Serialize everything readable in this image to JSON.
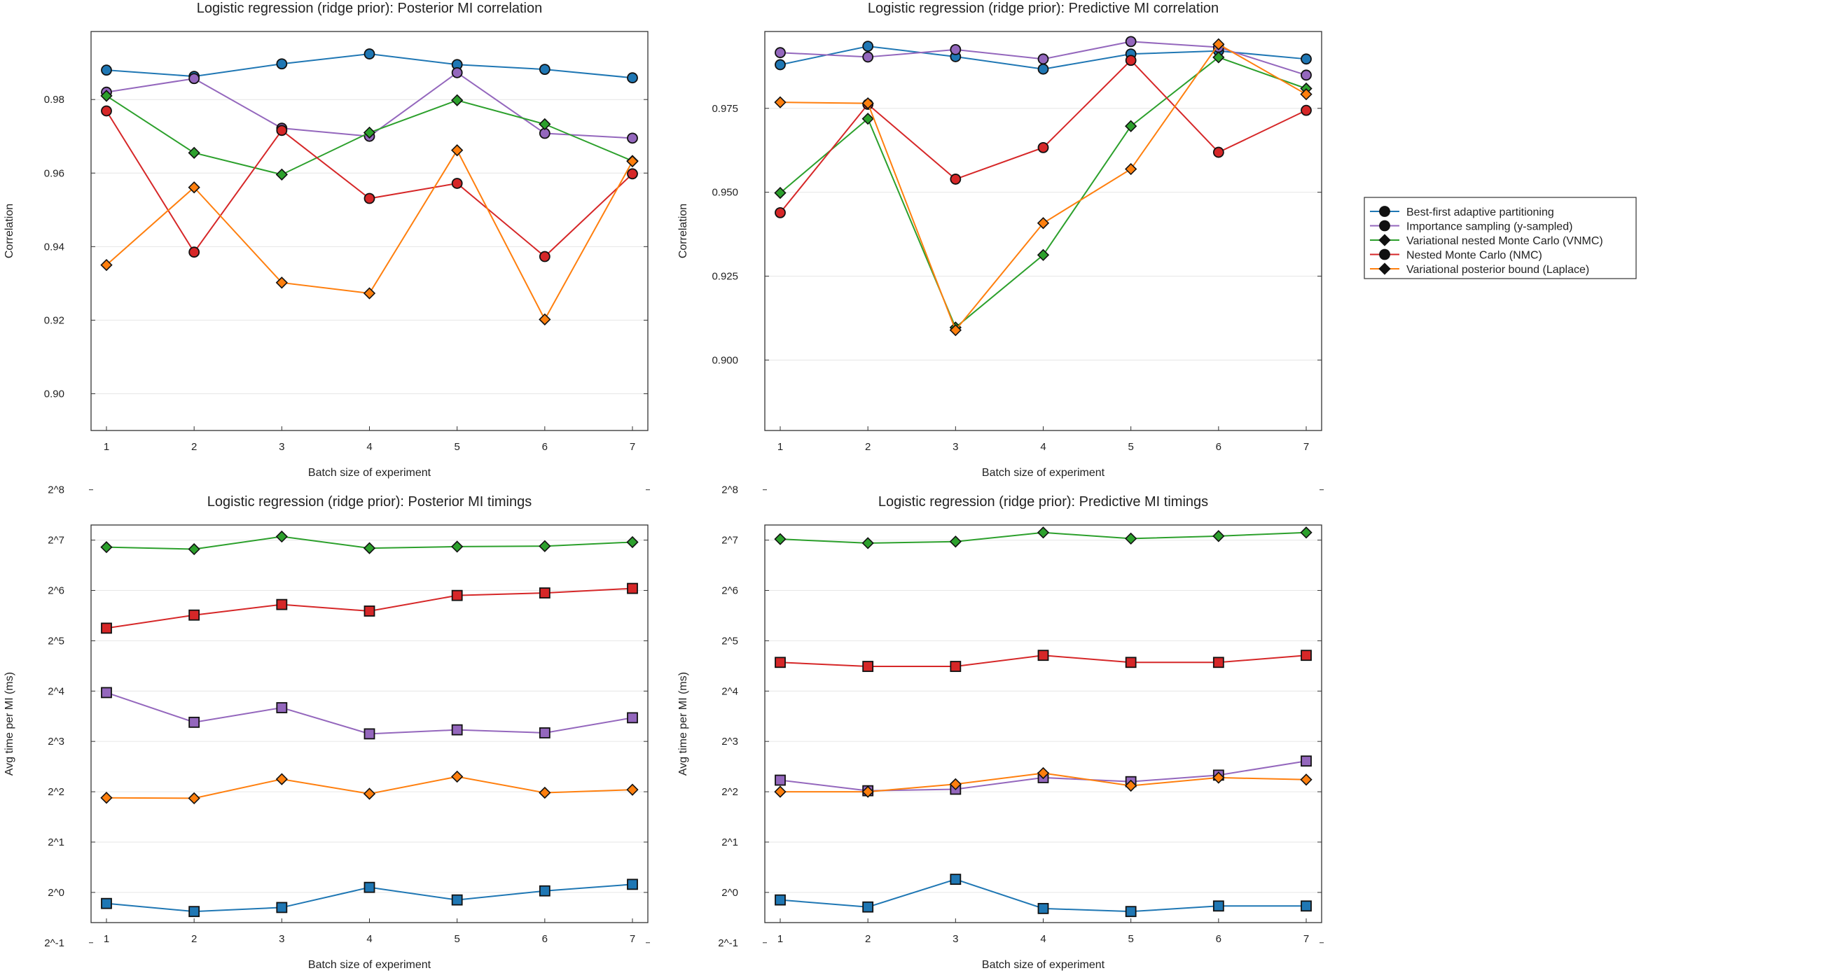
{
  "chart_data": [
    {
      "type": "line",
      "title": "Logistic regression (ridge prior): Posterior MI correlation",
      "xlabel": "Batch size of experiment",
      "ylabel": "Correlation",
      "x": [
        1,
        2,
        3,
        4,
        5,
        6,
        7
      ],
      "xticks": [
        "1",
        "2",
        "3",
        "4",
        "5",
        "6",
        "7"
      ],
      "ylim": [
        0.89,
        0.9985
      ],
      "yticks": [
        0.9,
        0.92,
        0.94,
        0.96,
        0.98
      ],
      "ytick_labels": [
        "0.90",
        "0.92",
        "0.94",
        "0.96",
        "0.98"
      ],
      "scale": "linear",
      "series": [
        {
          "name": "Best-first adaptive partitioning",
          "color": "#1f77b4",
          "marker": "circle",
          "values": [
            0.988,
            0.9863,
            0.9897,
            0.9924,
            0.9895,
            0.9882,
            0.9859
          ]
        },
        {
          "name": "Importance sampling (y-sampled)",
          "color": "#9467bd",
          "marker": "circle",
          "values": [
            0.982,
            0.9857,
            0.9722,
            0.97,
            0.9873,
            0.9708,
            0.9695
          ]
        },
        {
          "name": "Variational nested Monte Carlo (VNMC)",
          "color": "#2ca02c",
          "marker": "diamond",
          "values": [
            0.981,
            0.9655,
            0.9596,
            0.971,
            0.9798,
            0.9733,
            0.9633
          ]
        },
        {
          "name": "Nested Monte Carlo (NMC)",
          "color": "#d62728",
          "marker": "circle",
          "values": [
            0.9769,
            0.9385,
            0.9716,
            0.9531,
            0.9572,
            0.9373,
            0.9598
          ]
        },
        {
          "name": "Variational posterior bound (Laplace)",
          "color": "#ff7f0e",
          "marker": "diamond",
          "values": [
            0.935,
            0.9561,
            0.9302,
            0.9273,
            0.9662,
            0.9202,
            0.9632
          ]
        }
      ]
    },
    {
      "type": "line",
      "title": "Logistic regression (ridge prior): Predictive MI correlation",
      "xlabel": "Batch size of experiment",
      "ylabel": "Correlation",
      "x": [
        1,
        2,
        3,
        4,
        5,
        6,
        7
      ],
      "xticks": [
        "1",
        "2",
        "3",
        "4",
        "5",
        "6",
        "7"
      ],
      "ylim": [
        0.879,
        0.9979
      ],
      "yticks": [
        0.9,
        0.925,
        0.95,
        0.975
      ],
      "ytick_labels": [
        "0.900",
        "0.925",
        "0.950",
        "0.975"
      ],
      "scale": "linear",
      "series": [
        {
          "name": "Best-first adaptive partitioning",
          "color": "#1f77b4",
          "marker": "circle",
          "values": [
            0.988,
            0.9935,
            0.9904,
            0.9867,
            0.9912,
            0.9921,
            0.9897
          ]
        },
        {
          "name": "Importance sampling (y-sampled)",
          "color": "#9467bd",
          "marker": "circle",
          "values": [
            0.9916,
            0.9903,
            0.9925,
            0.9897,
            0.9949,
            0.9932,
            0.9849
          ]
        },
        {
          "name": "Variational nested Monte Carlo (VNMC)",
          "color": "#2ca02c",
          "marker": "diamond",
          "values": [
            0.9498,
            0.9719,
            0.9097,
            0.9313,
            0.9697,
            0.9902,
            0.9809
          ]
        },
        {
          "name": "Nested Monte Carlo (NMC)",
          "color": "#d62728",
          "marker": "circle",
          "values": [
            0.9439,
            0.9762,
            0.9539,
            0.9633,
            0.9893,
            0.9619,
            0.9744
          ]
        },
        {
          "name": "Variational posterior bound (Laplace)",
          "color": "#ff7f0e",
          "marker": "diamond",
          "values": [
            0.9768,
            0.9765,
            0.9089,
            0.9408,
            0.9569,
            0.9941,
            0.9792
          ]
        }
      ]
    },
    {
      "type": "line",
      "title": "Logistic regression (ridge prior): Posterior MI timings",
      "xlabel": "Batch size of experiment",
      "ylabel": "Avg time per MI (ms)",
      "x": [
        1,
        2,
        3,
        4,
        5,
        6,
        7
      ],
      "xticks": [
        "1",
        "2",
        "3",
        "4",
        "5",
        "6",
        "7"
      ],
      "ylim": [
        -0.6,
        7.3
      ],
      "yticks": [
        -1,
        0,
        1,
        2,
        3,
        4,
        5,
        6,
        7,
        8
      ],
      "ytick_labels": [
        "2^-1",
        "2^0",
        "2^1",
        "2^2",
        "2^3",
        "2^4",
        "2^5",
        "2^6",
        "2^7",
        "2^8"
      ],
      "scale": "log2",
      "series": [
        {
          "name": "Best-first adaptive partitioning",
          "color": "#1f77b4",
          "marker": "square",
          "values": [
            -0.22,
            -0.38,
            -0.3,
            0.1,
            -0.15,
            0.03,
            0.16
          ]
        },
        {
          "name": "Importance sampling (y-sampled)",
          "color": "#9467bd",
          "marker": "square",
          "values": [
            3.97,
            3.38,
            3.67,
            3.15,
            3.23,
            3.17,
            3.47
          ]
        },
        {
          "name": "Variational nested Monte Carlo (VNMC)",
          "color": "#2ca02c",
          "marker": "diamond",
          "values": [
            6.86,
            6.82,
            7.07,
            6.84,
            6.87,
            6.88,
            6.96
          ]
        },
        {
          "name": "Nested Monte Carlo (NMC)",
          "color": "#d62728",
          "marker": "square",
          "values": [
            5.25,
            5.51,
            5.72,
            5.59,
            5.9,
            5.95,
            6.04
          ]
        },
        {
          "name": "Variational posterior bound (Laplace)",
          "color": "#ff7f0e",
          "marker": "diamond",
          "values": [
            1.88,
            1.87,
            2.25,
            1.96,
            2.3,
            1.98,
            2.04
          ]
        }
      ]
    },
    {
      "type": "line",
      "title": "Logistic regression (ridge prior): Predictive MI timings",
      "xlabel": "Batch size of experiment",
      "ylabel": "Avg time per MI (ms)",
      "x": [
        1,
        2,
        3,
        4,
        5,
        6,
        7
      ],
      "xticks": [
        "1",
        "2",
        "3",
        "4",
        "5",
        "6",
        "7"
      ],
      "ylim": [
        -0.6,
        7.3
      ],
      "yticks": [
        -1,
        0,
        1,
        2,
        3,
        4,
        5,
        6,
        7,
        8
      ],
      "ytick_labels": [
        "2^-1",
        "2^0",
        "2^1",
        "2^2",
        "2^3",
        "2^4",
        "2^5",
        "2^6",
        "2^7",
        "2^8"
      ],
      "scale": "log2",
      "series": [
        {
          "name": "Best-first adaptive partitioning",
          "color": "#1f77b4",
          "marker": "square",
          "values": [
            -0.15,
            -0.29,
            0.26,
            -0.32,
            -0.38,
            -0.27,
            -0.27
          ]
        },
        {
          "name": "Importance sampling (y-sampled)",
          "color": "#9467bd",
          "marker": "square",
          "values": [
            2.23,
            2.02,
            2.05,
            2.28,
            2.2,
            2.33,
            2.61
          ]
        },
        {
          "name": "Variational nested Monte Carlo (VNMC)",
          "color": "#2ca02c",
          "marker": "diamond",
          "values": [
            7.02,
            6.94,
            6.97,
            7.15,
            7.03,
            7.08,
            7.15
          ]
        },
        {
          "name": "Nested Monte Carlo (NMC)",
          "color": "#d62728",
          "marker": "square",
          "values": [
            4.57,
            4.49,
            4.49,
            4.71,
            4.57,
            4.57,
            4.71
          ]
        },
        {
          "name": "Variational posterior bound (Laplace)",
          "color": "#ff7f0e",
          "marker": "diamond",
          "values": [
            2.0,
            2.0,
            2.15,
            2.37,
            2.12,
            2.28,
            2.24
          ]
        }
      ]
    }
  ],
  "legend": {
    "placement": "right",
    "items": [
      {
        "label": "Best-first adaptive partitioning",
        "color": "#1f77b4"
      },
      {
        "label": "Importance sampling (y-sampled)",
        "color": "#9467bd"
      },
      {
        "label": "Variational nested Monte Carlo (VNMC)",
        "color": "#2ca02c"
      },
      {
        "label": "Nested Monte Carlo (NMC)",
        "color": "#d62728"
      },
      {
        "label": "Variational posterior bound (Laplace)",
        "color": "#ff7f0e"
      }
    ]
  }
}
